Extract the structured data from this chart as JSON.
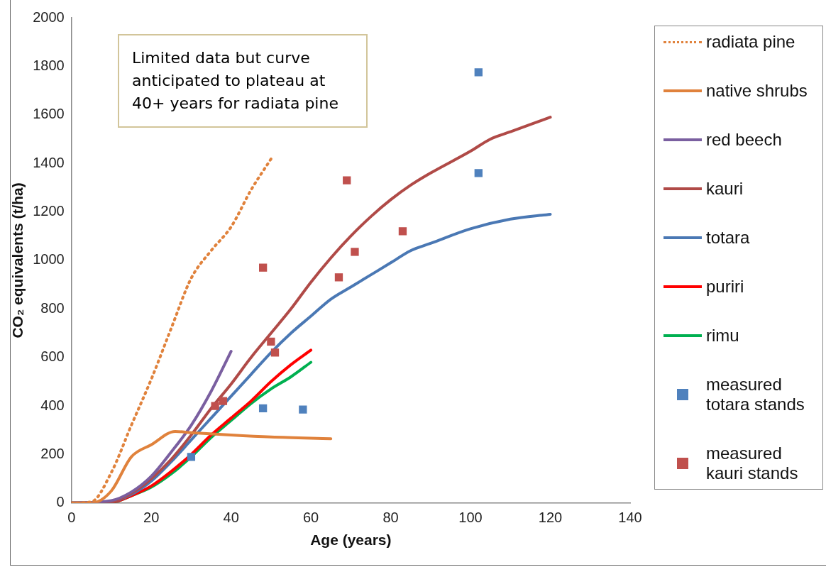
{
  "chart_data": {
    "type": "line",
    "xlabel": "Age (years)",
    "ylabel": "CO₂ equivalents (t/ha)",
    "xlim": [
      0,
      140
    ],
    "xticks": [
      0,
      20,
      40,
      60,
      80,
      100,
      120,
      140
    ],
    "ylim": [
      0,
      2000
    ],
    "yticks": [
      0,
      200,
      400,
      600,
      800,
      1000,
      1200,
      1400,
      1600,
      1800,
      2000
    ],
    "grid": false,
    "legend": "right",
    "marker": "none",
    "annotations": [
      "Limited data but curve anticipated to plateau at 40+ years for radiata pine"
    ],
    "series": [
      {
        "name": "radiata pine",
        "color": "#e0823c",
        "line_style": "dotted",
        "x": [
          0,
          5,
          10,
          15,
          20,
          25,
          30,
          35,
          40,
          45,
          50
        ],
        "values": [
          0,
          5,
          126,
          320,
          510,
          720,
          926,
          1040,
          1138,
          1290,
          1418
        ]
      },
      {
        "name": "native shrubs",
        "color": "#e0823c",
        "x": [
          0,
          5,
          10,
          15,
          20,
          26,
          30,
          40,
          50,
          65
        ],
        "values": [
          0,
          0,
          50,
          190,
          240,
          295,
          290,
          280,
          272,
          265
        ]
      },
      {
        "name": "red beech",
        "color": "#7a5fa0",
        "x": [
          0,
          10,
          15,
          20,
          25,
          30,
          35,
          40
        ],
        "values": [
          0,
          10,
          45,
          110,
          210,
          320,
          460,
          625
        ]
      },
      {
        "name": "kauri",
        "color": "#b04a47",
        "x": [
          0,
          10,
          15,
          20,
          25,
          30,
          35,
          40,
          45,
          50,
          55,
          60,
          65,
          70,
          75,
          80,
          85,
          90,
          100,
          105,
          110,
          115,
          120
        ],
        "values": [
          0,
          5,
          40,
          100,
          180,
          280,
          390,
          490,
          600,
          700,
          800,
          910,
          1010,
          1100,
          1180,
          1250,
          1310,
          1360,
          1450,
          1500,
          1530,
          1560,
          1590
        ]
      },
      {
        "name": "totara",
        "color": "#4a78b4",
        "x": [
          0,
          10,
          15,
          20,
          25,
          30,
          35,
          40,
          45,
          50,
          55,
          60,
          65,
          70,
          75,
          80,
          85,
          90,
          100,
          110,
          120
        ],
        "values": [
          0,
          5,
          35,
          90,
          170,
          260,
          350,
          440,
          530,
          620,
          700,
          770,
          840,
          890,
          940,
          990,
          1040,
          1070,
          1130,
          1170,
          1190
        ]
      },
      {
        "name": "puriri",
        "color": "#ff0000",
        "x": [
          0,
          10,
          15,
          20,
          25,
          30,
          35,
          40,
          45,
          50,
          55,
          60
        ],
        "values": [
          0,
          3,
          30,
          70,
          130,
          200,
          280,
          350,
          420,
          500,
          570,
          630
        ]
      },
      {
        "name": "rimu",
        "color": "#00b050",
        "x": [
          0,
          10,
          15,
          20,
          25,
          30,
          35,
          40,
          45,
          50,
          55,
          60
        ],
        "values": [
          0,
          2,
          30,
          65,
          120,
          190,
          270,
          340,
          410,
          470,
          520,
          580
        ]
      },
      {
        "name": "measured totara stands",
        "type": "scatter",
        "marker": "square",
        "color": "#4f81bd",
        "x": [
          30,
          48,
          58,
          102,
          102
        ],
        "values": [
          190,
          390,
          385,
          1360,
          1775
        ]
      },
      {
        "name": "measured kauri stands",
        "type": "scatter",
        "marker": "square",
        "color": "#c0504d",
        "x": [
          36,
          38,
          48,
          50,
          51,
          67,
          69,
          71,
          83
        ],
        "values": [
          400,
          420,
          970,
          665,
          620,
          930,
          1330,
          1035,
          1120
        ]
      }
    ]
  }
}
